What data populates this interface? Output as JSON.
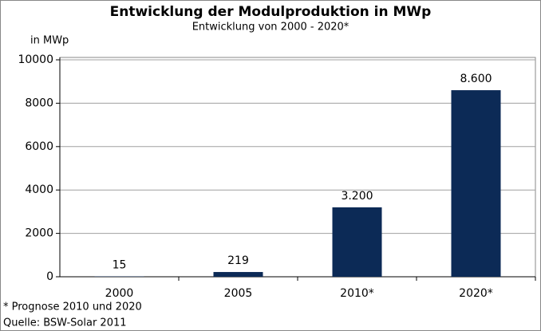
{
  "chart_data": {
    "type": "bar",
    "title": "Entwicklung der Modulproduktion in MWp",
    "subtitle": "Entwicklung von 2000 - 2020*",
    "y_label": "in MWp",
    "categories": [
      "2000",
      "2005",
      "2010*",
      "2020*"
    ],
    "values": [
      15,
      219,
      3200,
      8600
    ],
    "value_labels": [
      "15",
      "219",
      "3.200",
      "8.600"
    ],
    "color": "#0c2a56",
    "ylim": [
      0,
      10000
    ],
    "yticks": [
      0,
      2000,
      4000,
      6000,
      8000,
      10000
    ],
    "grid": true,
    "notes": [
      "* Prognose 2010 und 2020",
      "Quelle: BSW-Solar 2011"
    ]
  }
}
